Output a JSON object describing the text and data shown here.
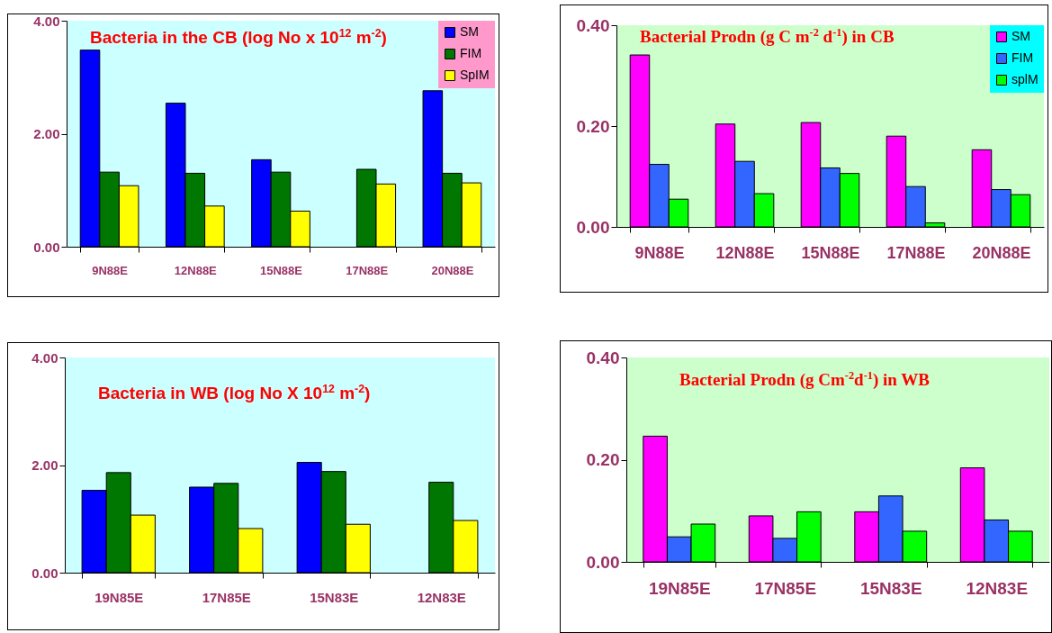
{
  "chart_data": [
    {
      "type": "bar",
      "title": "Bacteria in the CB (log No x 10$^{12}$ m$^{-2}$)",
      "categories": [
        "9N88E",
        "12N88E",
        "15N88E",
        "17N88E",
        "20N88E"
      ],
      "series": [
        {
          "name": "SM",
          "color": "#0000ff",
          "values": [
            3.48,
            2.54,
            1.54,
            null,
            2.76
          ]
        },
        {
          "name": "FIM",
          "color": "#007700",
          "values": [
            1.32,
            1.3,
            1.32,
            1.37,
            1.3
          ]
        },
        {
          "name": "SpIM",
          "color": "#ffff00",
          "values": [
            1.08,
            0.72,
            0.63,
            1.11,
            1.13
          ]
        }
      ],
      "ylim": [
        0,
        4
      ],
      "yticks": [
        {
          "value": 0,
          "label": "0.00"
        },
        {
          "value": 2,
          "label": "2.00"
        },
        {
          "value": 4,
          "label": "4.00"
        }
      ],
      "legend": "top right"
    },
    {
      "type": "bar",
      "title": "Bacterial Prodn (g C m$^{-2}$ d$^{-1}$) in CB",
      "categories": [
        "9N88E",
        "12N88E",
        "15N88E",
        "17N88E",
        "20N88E"
      ],
      "series": [
        {
          "name": "SM",
          "color": "#ff00ff",
          "values": [
            0.341,
            0.204,
            0.207,
            0.18,
            0.153
          ]
        },
        {
          "name": "FIM",
          "color": "#3366ff",
          "values": [
            0.124,
            0.13,
            0.117,
            0.08,
            0.074
          ]
        },
        {
          "name": "splM",
          "color": "#00ff00",
          "values": [
            0.055,
            0.066,
            0.106,
            0.008,
            0.064
          ]
        }
      ],
      "ylim": [
        0,
        0.4
      ],
      "yticks": [
        {
          "value": 0,
          "label": "0.00"
        },
        {
          "value": 0.2,
          "label": "0.20"
        },
        {
          "value": 0.4,
          "label": "0.40"
        }
      ],
      "legend": "top right"
    },
    {
      "type": "bar",
      "title": "Bacteria in WB (log No X 10$^{12}$ m$^{-2}$)",
      "categories": [
        "19N85E",
        "17N85E",
        "15N83E",
        "12N83E"
      ],
      "series": [
        {
          "color": "#0000ff",
          "values": [
            1.53,
            1.59,
            2.05,
            null
          ]
        },
        {
          "color": "#007700",
          "values": [
            1.86,
            1.66,
            1.88,
            1.68
          ]
        },
        {
          "color": "#ffff00",
          "values": [
            1.07,
            0.82,
            0.9,
            0.97
          ]
        }
      ],
      "ylim": [
        0,
        4
      ],
      "yticks": [
        {
          "value": 0,
          "label": "0.00"
        },
        {
          "value": 2,
          "label": "2.00"
        },
        {
          "value": 4,
          "label": "4.00"
        }
      ]
    },
    {
      "type": "bar",
      "title": "Bacterial Prodn (g Cm$^{-2}$d$^{-1}$) in WB",
      "categories": [
        "19N85E",
        "17N85E",
        "15N83E",
        "12N83E"
      ],
      "series": [
        {
          "color": "#ff00ff",
          "values": [
            0.246,
            0.09,
            0.098,
            0.184
          ]
        },
        {
          "color": "#3366ff",
          "values": [
            0.049,
            0.046,
            0.129,
            0.082
          ]
        },
        {
          "color": "#00ff00",
          "values": [
            0.074,
            0.098,
            0.06,
            0.06
          ]
        }
      ],
      "ylim": [
        0,
        0.4
      ],
      "yticks": [
        {
          "value": 0,
          "label": "0.00"
        },
        {
          "value": 0.2,
          "label": "0.20"
        },
        {
          "value": 0.4,
          "label": "0.40"
        }
      ]
    }
  ]
}
